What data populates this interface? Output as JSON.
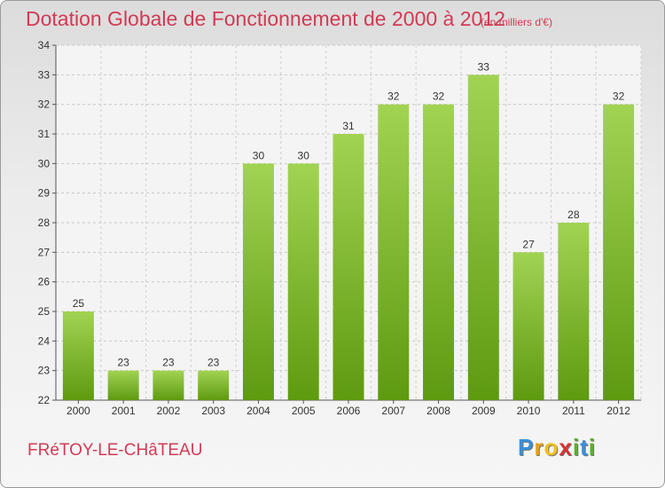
{
  "header": {
    "title": "Dotation Globale de Fonctionnement de 2000 à 2012",
    "unit": "(en milliers d'€)"
  },
  "footer": {
    "commune": "FRéTOY-LE-CHâTEAU",
    "logo_letters": [
      {
        "ch": "P",
        "color": "#3a8fd8"
      },
      {
        "ch": "r",
        "color": "#e8a01c"
      },
      {
        "ch": "o",
        "color": "#f0c020"
      },
      {
        "ch": "x",
        "color": "#d8322f"
      },
      {
        "ch": "i",
        "color": "#59b030"
      },
      {
        "ch": "t",
        "color": "#3a8fd8"
      },
      {
        "ch": "i",
        "color": "#59b030"
      }
    ]
  },
  "chart_data": {
    "type": "bar",
    "categories": [
      "2000",
      "2001",
      "2002",
      "2003",
      "2004",
      "2005",
      "2006",
      "2007",
      "2008",
      "2009",
      "2010",
      "2011",
      "2012"
    ],
    "values": [
      25,
      23,
      23,
      23,
      30,
      30,
      31,
      32,
      32,
      33,
      27,
      28,
      32
    ],
    "ylim": [
      22,
      34
    ],
    "yticks": [
      22,
      23,
      24,
      25,
      26,
      27,
      28,
      29,
      30,
      31,
      32,
      33,
      34
    ],
    "grid": true,
    "colors": {
      "bar_light": "#a2d353",
      "bar_dark": "#5e9a10"
    }
  }
}
